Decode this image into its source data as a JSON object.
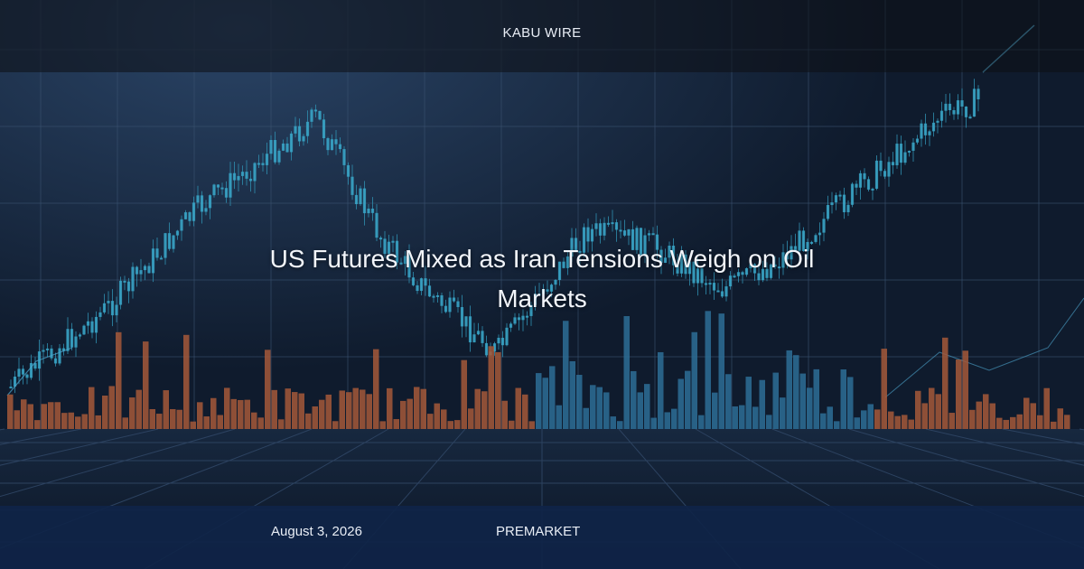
{
  "header": {
    "brand": "KABU WIRE"
  },
  "article": {
    "title": "US Futures Mixed as Iran Tensions Weigh on Oil Markets"
  },
  "footer": {
    "date": "August 3, 2026",
    "category": "PREMARKET"
  }
}
